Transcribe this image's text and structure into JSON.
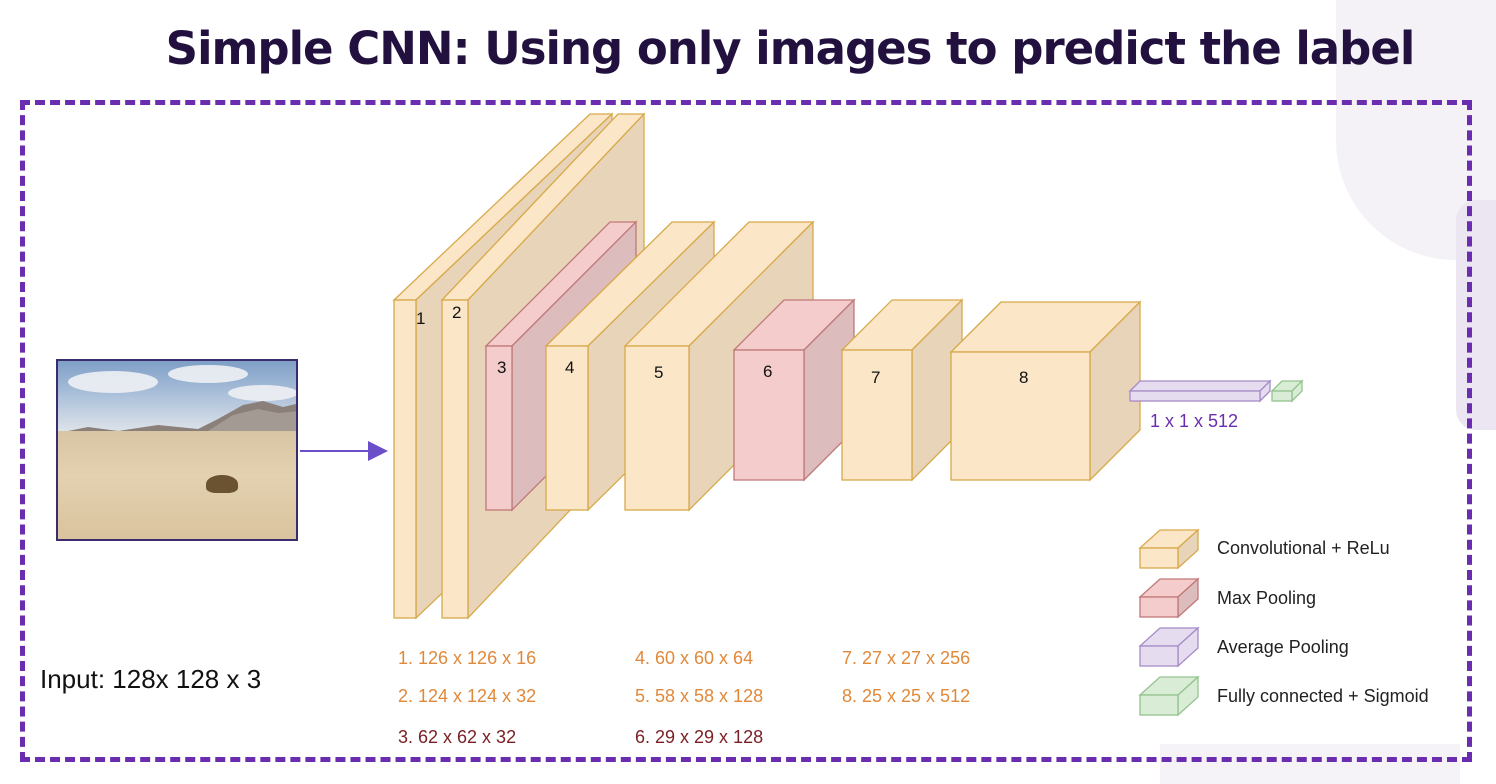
{
  "title": "Simple CNN: Using only images to predict the label",
  "input_label": "Input: 128x 128 x 3",
  "colors": {
    "frame": "#6a2db0",
    "title": "#22103f",
    "conv_front": "#fce6c8",
    "conv_side": "#e8d4b8",
    "conv_edge": "#d7a94a",
    "pool_front": "#f5cccc",
    "pool_side": "#dcbcbc",
    "pool_edge": "#c07878",
    "avg_front": "#e5dcef",
    "avg_edge": "#a58bc7",
    "fc_front": "#d8ecd6",
    "fc_edge": "#95c38f",
    "conv_text": "#e0893a",
    "pool_text": "#7a1f24",
    "avg_text": "#6a2db0"
  },
  "layers": [
    {
      "label": "1",
      "kind": "conv"
    },
    {
      "label": "2",
      "kind": "conv"
    },
    {
      "label": "3",
      "kind": "pool"
    },
    {
      "label": "4",
      "kind": "conv"
    },
    {
      "label": "5",
      "kind": "conv"
    },
    {
      "label": "6",
      "kind": "pool"
    },
    {
      "label": "7",
      "kind": "conv"
    },
    {
      "label": "8",
      "kind": "conv"
    }
  ],
  "vector_label": "1 x 1 x 512",
  "dimensions": [
    {
      "text": "1. 126 x 126 x 16",
      "kind": "conv"
    },
    {
      "text": "2. 124 x 124 x 32",
      "kind": "conv"
    },
    {
      "text": "3. 62 x 62 x 32",
      "kind": "pool"
    },
    {
      "text": "4. 60 x 60 x 64",
      "kind": "conv"
    },
    {
      "text": "5. 58 x 58 x 128",
      "kind": "conv"
    },
    {
      "text": "6. 29 x 29 x 128",
      "kind": "pool"
    },
    {
      "text": "7. 27 x 27 x 256",
      "kind": "conv"
    },
    {
      "text": "8. 25 x 25 x 512",
      "kind": "conv"
    }
  ],
  "legend": [
    {
      "label": "Convolutional + ReLu",
      "kind": "conv"
    },
    {
      "label": "Max Pooling",
      "kind": "pool"
    },
    {
      "label": "Average Pooling",
      "kind": "avg"
    },
    {
      "label": "Fully connected + Sigmoid",
      "kind": "fc"
    }
  ]
}
